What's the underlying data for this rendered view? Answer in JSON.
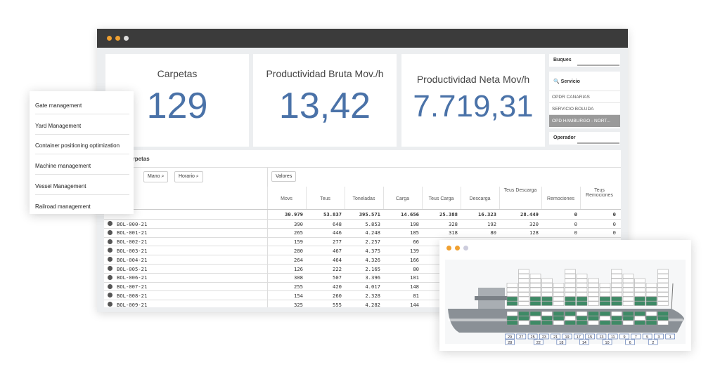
{
  "kpis": [
    {
      "label": "Carpetas",
      "value": "129"
    },
    {
      "label": "Productividad Bruta Mov./h",
      "value": "13,42"
    },
    {
      "label": "Productividad Neta Mov/h",
      "value": "7.719,31"
    }
  ],
  "filters": {
    "buques": "Buques",
    "servicio": "Servicio",
    "items": [
      "OPDR CANARIAS",
      "SERVICIO BOLUDA",
      "OPD HAMBURGO - NORT..."
    ],
    "operador": "Operador"
  },
  "menu": [
    "Gate management",
    "Yard Management",
    "Container positioning optimization",
    "Machine management",
    "Vessel Management",
    "Railroad management"
  ],
  "table": {
    "title": "Datos Carpetas",
    "dimensions": [
      "Mano",
      "Horario"
    ],
    "measures_button": "Valores",
    "columns": [
      "Movs",
      "Teus",
      "Toneladas",
      "Carga",
      "Teus Carga",
      "Descarga",
      "Teus Descarga",
      "Remociones",
      "Teus Remociones"
    ],
    "totals": [
      "30.979",
      "53.837",
      "395.571",
      "14.656",
      "25.388",
      "16.323",
      "28.449",
      "0",
      "0"
    ],
    "rows": [
      {
        "name": "BOL-000-21",
        "values": [
          "390",
          "648",
          "5.853",
          "198",
          "328",
          "192",
          "320",
          "0",
          "0"
        ]
      },
      {
        "name": "BOL-001-21",
        "values": [
          "265",
          "446",
          "4.248",
          "185",
          "318",
          "80",
          "128",
          "0",
          "0"
        ]
      },
      {
        "name": "BOL-002-21",
        "values": [
          "159",
          "277",
          "2.257",
          "66"
        ]
      },
      {
        "name": "BOL-003-21",
        "values": [
          "280",
          "467",
          "4.375",
          "139"
        ]
      },
      {
        "name": "BOL-004-21",
        "values": [
          "264",
          "464",
          "4.326",
          "166"
        ]
      },
      {
        "name": "BOL-005-21",
        "values": [
          "126",
          "222",
          "2.165",
          "80"
        ]
      },
      {
        "name": "BOL-006-21",
        "values": [
          "308",
          "507",
          "3.396",
          "101"
        ]
      },
      {
        "name": "BOL-007-21",
        "values": [
          "255",
          "420",
          "4.017",
          "148"
        ]
      },
      {
        "name": "BOL-008-21",
        "values": [
          "154",
          "260",
          "2.328",
          "81"
        ]
      },
      {
        "name": "BOL-009-21",
        "values": [
          "325",
          "555",
          "4.282",
          "144"
        ]
      }
    ]
  },
  "ship": {
    "bays_top": [
      "29",
      "27",
      "25",
      "23",
      "21",
      "19",
      "17",
      "15",
      "13",
      "11",
      "9",
      "7",
      "5",
      "3",
      "1"
    ],
    "bays_bottom": [
      "28",
      "22",
      "18",
      "14",
      "10",
      "6",
      "2"
    ]
  }
}
